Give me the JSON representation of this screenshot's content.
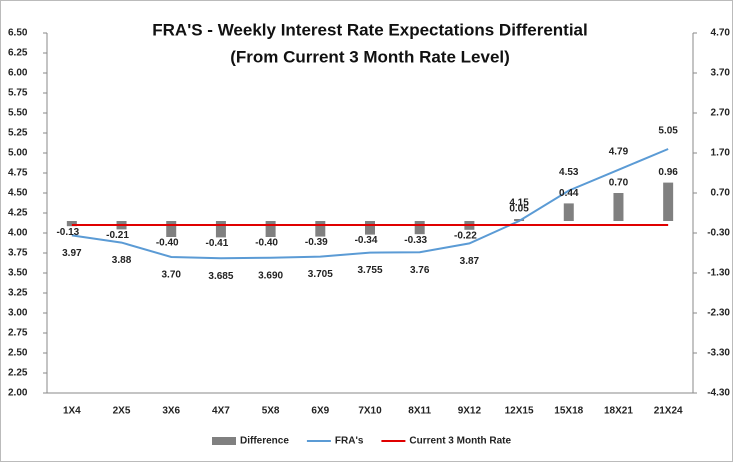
{
  "chart_data": {
    "type": "combo",
    "title": "FRA'S - Weekly Interest Rate Expectations Differential",
    "subtitle": "(From  Current 3 Month Rate Level)",
    "categories": [
      "1X4",
      "2X5",
      "3X6",
      "4X7",
      "5X8",
      "6X9",
      "7X10",
      "8X11",
      "9X12",
      "12X15",
      "15X18",
      "18X21",
      "21X24"
    ],
    "series": [
      {
        "name": "Difference",
        "type": "bar",
        "axis": "y2",
        "color": "#808080",
        "values": [
          -0.13,
          -0.21,
          -0.4,
          -0.41,
          -0.4,
          -0.39,
          -0.34,
          -0.33,
          -0.22,
          0.05,
          0.44,
          0.7,
          0.96
        ],
        "value_labels": [
          "-0.13",
          "-0.21",
          "-0.40",
          "-0.41",
          "-0.40",
          "-0.39",
          "-0.34",
          "-0.33",
          "-0.22",
          "0.05",
          "0.44",
          "0.70",
          "0.96"
        ]
      },
      {
        "name": "FRA's",
        "type": "line",
        "color": "#5b9bd5",
        "values": [
          3.97,
          3.88,
          3.7,
          3.685,
          3.69,
          3.705,
          3.755,
          3.76,
          3.87,
          4.15,
          4.53,
          4.79,
          5.05
        ],
        "value_labels": [
          "3.97",
          "3.88",
          "3.70",
          "3.685",
          "3.690",
          "3.705",
          "3.755",
          "3.76",
          "3.87",
          "4.15",
          "4.53",
          "4.79",
          "5.05"
        ]
      },
      {
        "name": "Current 3 Month Rate",
        "type": "line",
        "color": "#e00000",
        "values": [
          4.1,
          4.1,
          4.1,
          4.1,
          4.1,
          4.1,
          4.1,
          4.1,
          4.1,
          4.1,
          4.1,
          4.1,
          4.1
        ]
      }
    ],
    "ylim": [
      2.0,
      6.5
    ],
    "yticks": [
      {
        "value": 2.0,
        "label": "2.00"
      },
      2.25,
      {
        "value": 2.5,
        "label": "2.50"
      },
      2.75,
      {
        "value": 3.0,
        "label": "3.00"
      },
      3.25,
      {
        "value": 3.5,
        "label": "3.50"
      },
      3.75,
      {
        "value": 4.0,
        "label": "4.00"
      },
      4.25,
      {
        "value": 4.5,
        "label": "4.50"
      },
      4.75,
      {
        "value": 5.0,
        "label": "5.00"
      },
      5.25,
      {
        "value": 5.5,
        "label": "5.50"
      },
      5.75,
      {
        "value": 6.0,
        "label": "6.00"
      },
      6.25,
      {
        "value": 6.5,
        "label": "6.50"
      }
    ],
    "y2lim": [
      -4.3,
      4.7
    ],
    "y2ticks": [
      {
        "value": -4.3,
        "label": "-4.30"
      },
      {
        "value": -3.3,
        "label": "-3.30"
      },
      {
        "value": -2.3,
        "label": "-2.30"
      },
      {
        "value": -1.3,
        "label": "-1.30"
      },
      {
        "value": -0.3,
        "label": "-0.30"
      },
      {
        "value": 0.7,
        "label": "0.70"
      },
      {
        "value": 1.7,
        "label": "1.70"
      },
      {
        "value": 2.7,
        "label": "2.70"
      },
      {
        "value": 3.7,
        "label": "3.70"
      },
      {
        "value": 4.7,
        "label": "4.70"
      }
    ],
    "grid": false,
    "legend": "bottom"
  }
}
